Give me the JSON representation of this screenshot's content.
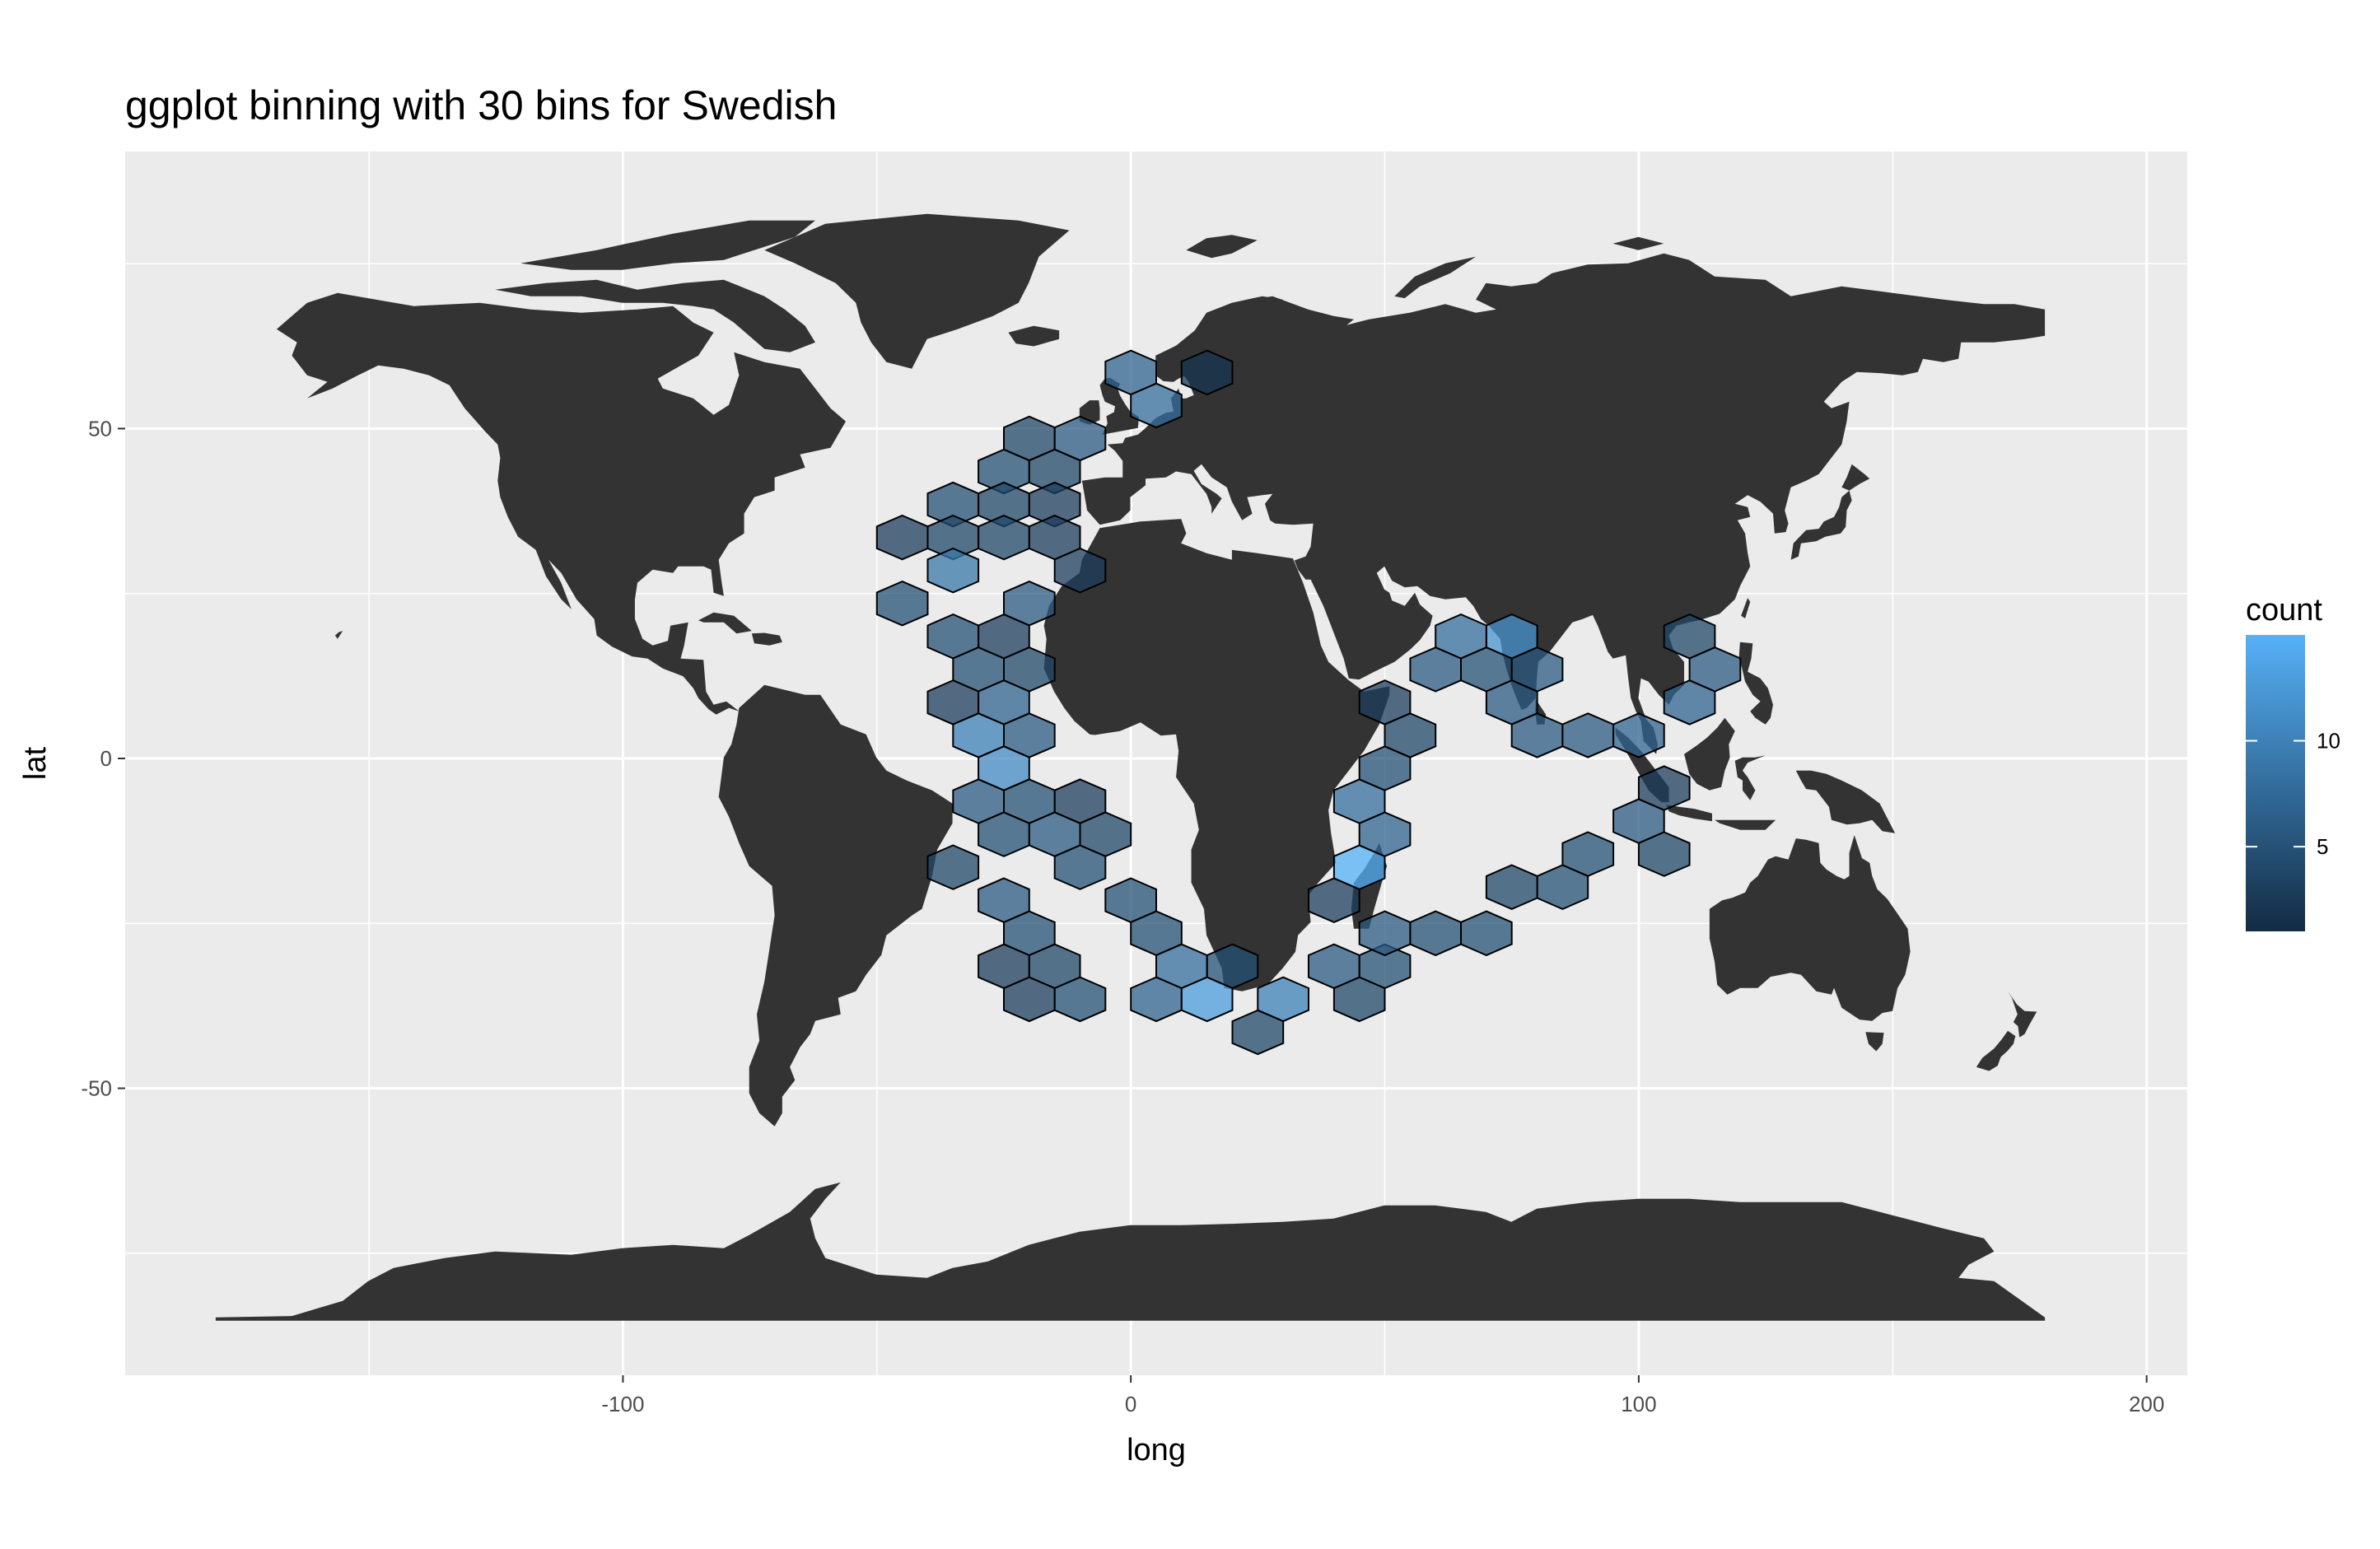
{
  "chart_data": {
    "type": "hexbin",
    "title": "ggplot binning with 30 bins for Swedish",
    "xlabel": "long",
    "ylabel": "lat",
    "xlim": [
      -198,
      208
    ],
    "ylim": [
      -93.5,
      92
    ],
    "x_ticks": [
      -100,
      0,
      100,
      200
    ],
    "y_ticks": [
      -50,
      0,
      50
    ],
    "x_minor_ticks": [
      -150,
      -50,
      50,
      150
    ],
    "y_minor_ticks": [
      -75,
      -25,
      25,
      75
    ],
    "grid": true,
    "legend": {
      "title": "count",
      "position": "right",
      "ticks": [
        5,
        10
      ],
      "min": 1,
      "max": 15,
      "low_color": "#132B43",
      "high_color": "#56B1F7"
    },
    "colors": {
      "panel_bg": "#ebebeb",
      "grid": "#ffffff",
      "land": "#333333",
      "hex_border": "#000000"
    },
    "hex_bins": [
      {
        "long": -20,
        "lat": 48.5,
        "count": 4
      },
      {
        "long": -10,
        "lat": 48.5,
        "count": 6
      },
      {
        "long": -25,
        "lat": 43.5,
        "count": 5
      },
      {
        "long": -15,
        "lat": 43.5,
        "count": 4
      },
      {
        "long": -35,
        "lat": 38.5,
        "count": 5
      },
      {
        "long": -25,
        "lat": 38.5,
        "count": 4
      },
      {
        "long": -15,
        "lat": 38.5,
        "count": 3
      },
      {
        "long": -45,
        "lat": 33.5,
        "count": 3
      },
      {
        "long": -35,
        "lat": 33.5,
        "count": 4
      },
      {
        "long": -25,
        "lat": 33.5,
        "count": 4
      },
      {
        "long": -15,
        "lat": 33.5,
        "count": 3
      },
      {
        "long": -35,
        "lat": 28.5,
        "count": 9
      },
      {
        "long": -10,
        "lat": 28.5,
        "count": 3
      },
      {
        "long": -45,
        "lat": 23.5,
        "count": 5
      },
      {
        "long": -20,
        "lat": 23.5,
        "count": 6
      },
      {
        "long": -35,
        "lat": 18.5,
        "count": 5
      },
      {
        "long": -25,
        "lat": 18.5,
        "count": 3
      },
      {
        "long": -30,
        "lat": 13.5,
        "count": 5
      },
      {
        "long": -20,
        "lat": 13.5,
        "count": 4
      },
      {
        "long": -35,
        "lat": 8.5,
        "count": 3
      },
      {
        "long": -25,
        "lat": 8.5,
        "count": 7
      },
      {
        "long": -30,
        "lat": 3.5,
        "count": 10
      },
      {
        "long": -20,
        "lat": 3.5,
        "count": 6
      },
      {
        "long": -25,
        "lat": -1.5,
        "count": 11
      },
      {
        "long": -30,
        "lat": -6.5,
        "count": 6
      },
      {
        "long": -20,
        "lat": -6.5,
        "count": 5
      },
      {
        "long": -10,
        "lat": -6.5,
        "count": 3
      },
      {
        "long": -25,
        "lat": -11.5,
        "count": 5
      },
      {
        "long": -15,
        "lat": -11.5,
        "count": 6
      },
      {
        "long": -5,
        "lat": -11.5,
        "count": 4
      },
      {
        "long": -35,
        "lat": -16.5,
        "count": 4
      },
      {
        "long": -10,
        "lat": -16.5,
        "count": 5
      },
      {
        "long": -25,
        "lat": -21.5,
        "count": 6
      },
      {
        "long": 0,
        "lat": -21.5,
        "count": 5
      },
      {
        "long": -20,
        "lat": -26.5,
        "count": 5
      },
      {
        "long": 5,
        "lat": -26.5,
        "count": 5
      },
      {
        "long": -25,
        "lat": -31.5,
        "count": 3
      },
      {
        "long": -15,
        "lat": -31.5,
        "count": 4
      },
      {
        "long": 10,
        "lat": -31.5,
        "count": 8
      },
      {
        "long": 20,
        "lat": -31.5,
        "count": 5
      },
      {
        "long": 40,
        "lat": -31.5,
        "count": 6
      },
      {
        "long": 50,
        "lat": -31.5,
        "count": 5
      },
      {
        "long": -20,
        "lat": -36.5,
        "count": 3
      },
      {
        "long": -10,
        "lat": -36.5,
        "count": 5
      },
      {
        "long": 5,
        "lat": -36.5,
        "count": 7
      },
      {
        "long": 15,
        "lat": -36.5,
        "count": 13
      },
      {
        "long": 30,
        "lat": -36.5,
        "count": 10
      },
      {
        "long": 45,
        "lat": -36.5,
        "count": 4
      },
      {
        "long": 25,
        "lat": -41.5,
        "count": 4
      },
      {
        "long": 0,
        "lat": 58.5,
        "count": 7
      },
      {
        "long": 15,
        "lat": 58.5,
        "count": 2
      },
      {
        "long": 5,
        "lat": 53.5,
        "count": 8
      },
      {
        "long": 50,
        "lat": -26.5,
        "count": 6
      },
      {
        "long": 60,
        "lat": -26.5,
        "count": 5
      },
      {
        "long": 70,
        "lat": -26.5,
        "count": 5
      },
      {
        "long": 40,
        "lat": -21.5,
        "count": 3
      },
      {
        "long": 45,
        "lat": -16.5,
        "count": 15
      },
      {
        "long": 50,
        "lat": -11.5,
        "count": 7
      },
      {
        "long": 45,
        "lat": -6.5,
        "count": 8
      },
      {
        "long": 50,
        "lat": -1.5,
        "count": 5
      },
      {
        "long": 55,
        "lat": 3.5,
        "count": 4
      },
      {
        "long": 50,
        "lat": 8.5,
        "count": 3
      },
      {
        "long": 60,
        "lat": 13.5,
        "count": 6
      },
      {
        "long": 70,
        "lat": 13.5,
        "count": 5
      },
      {
        "long": 80,
        "lat": 13.5,
        "count": 6
      },
      {
        "long": 65,
        "lat": 18.5,
        "count": 8
      },
      {
        "long": 75,
        "lat": 18.5,
        "count": 12
      },
      {
        "long": 75,
        "lat": 8.5,
        "count": 6
      },
      {
        "long": 80,
        "lat": 3.5,
        "count": 6
      },
      {
        "long": 90,
        "lat": 3.5,
        "count": 6
      },
      {
        "long": 100,
        "lat": 3.5,
        "count": 7
      },
      {
        "long": 110,
        "lat": 8.5,
        "count": 7
      },
      {
        "long": 115,
        "lat": 13.5,
        "count": 6
      },
      {
        "long": 110,
        "lat": 18.5,
        "count": 4
      },
      {
        "long": 105,
        "lat": -4.5,
        "count": 3
      },
      {
        "long": 100,
        "lat": -9.5,
        "count": 6
      },
      {
        "long": 90,
        "lat": -14.5,
        "count": 5
      },
      {
        "long": 105,
        "lat": -14.5,
        "count": 4
      },
      {
        "long": 85,
        "lat": -19.5,
        "count": 5
      },
      {
        "long": 75,
        "lat": -19.5,
        "count": 4
      }
    ]
  }
}
